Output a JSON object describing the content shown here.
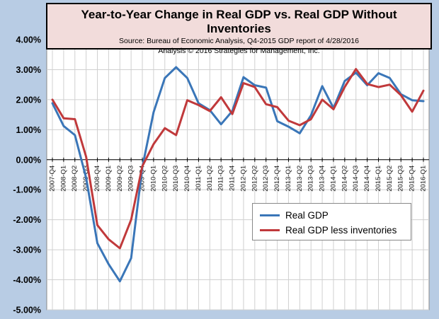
{
  "chart_data": {
    "type": "line",
    "title": "Year-to-Year Change in Real GDP vs. Real GDP Without Inventories",
    "subtitle_lines": [
      "Source: Bureau of Economic Analysis, Q4-2015 GDP report of 4/28/2016",
      "Analysis © 2016 Strategies for Management, Inc."
    ],
    "xlabel": "",
    "ylabel": "",
    "ylim": [
      -5,
      4
    ],
    "yticks": [
      "4.00%",
      "3.00%",
      "2.00%",
      "1.00%",
      "0.00%",
      "-1.00%",
      "-2.00%",
      "-3.00%",
      "-4.00%",
      "-5.00%"
    ],
    "grid": true,
    "legend_position": "lower-right",
    "categories": [
      "2007-Q4",
      "2008-Q1",
      "2008-Q2",
      "2008-Q3",
      "2008-Q4",
      "2009-Q1",
      "2009-Q2",
      "2009-Q3",
      "2009-Q4",
      "2010-Q1",
      "2010-Q2",
      "2010-Q3",
      "2010-Q4",
      "2011-Q1",
      "2011-Q2",
      "2011-Q3",
      "2011-Q4",
      "2012-Q1",
      "2012-Q2",
      "2012-Q3",
      "2012-Q4",
      "2013-Q1",
      "2013-Q2",
      "2013-Q3",
      "2013-Q4",
      "2014-Q1",
      "2014-Q2",
      "2014-Q3",
      "2014-Q4",
      "2015-Q1",
      "2015-Q2",
      "2015-Q3",
      "2015-Q4",
      "2016-Q1"
    ],
    "series": [
      {
        "name": "Real GDP",
        "color": "#3a76b8",
        "values": [
          1.88,
          1.12,
          0.82,
          -0.6,
          -2.78,
          -3.48,
          -4.05,
          -3.28,
          -0.25,
          1.58,
          2.72,
          3.08,
          2.72,
          1.88,
          1.65,
          1.18,
          1.62,
          2.75,
          2.48,
          2.4,
          1.28,
          1.1,
          0.88,
          1.48,
          2.45,
          1.72,
          2.62,
          2.9,
          2.48,
          2.88,
          2.72,
          2.18,
          1.98,
          1.95
        ]
      },
      {
        "name": "Real GDP less inventories",
        "color": "#c0393b",
        "values": [
          2.0,
          1.38,
          1.35,
          0.1,
          -2.18,
          -2.65,
          -2.95,
          -2.0,
          -0.22,
          0.52,
          1.05,
          0.82,
          1.98,
          1.82,
          1.62,
          2.08,
          1.52,
          2.55,
          2.42,
          1.85,
          1.75,
          1.3,
          1.15,
          1.35,
          2.0,
          1.68,
          2.42,
          3.02,
          2.52,
          2.42,
          2.5,
          2.15,
          1.6,
          2.3
        ]
      }
    ]
  }
}
